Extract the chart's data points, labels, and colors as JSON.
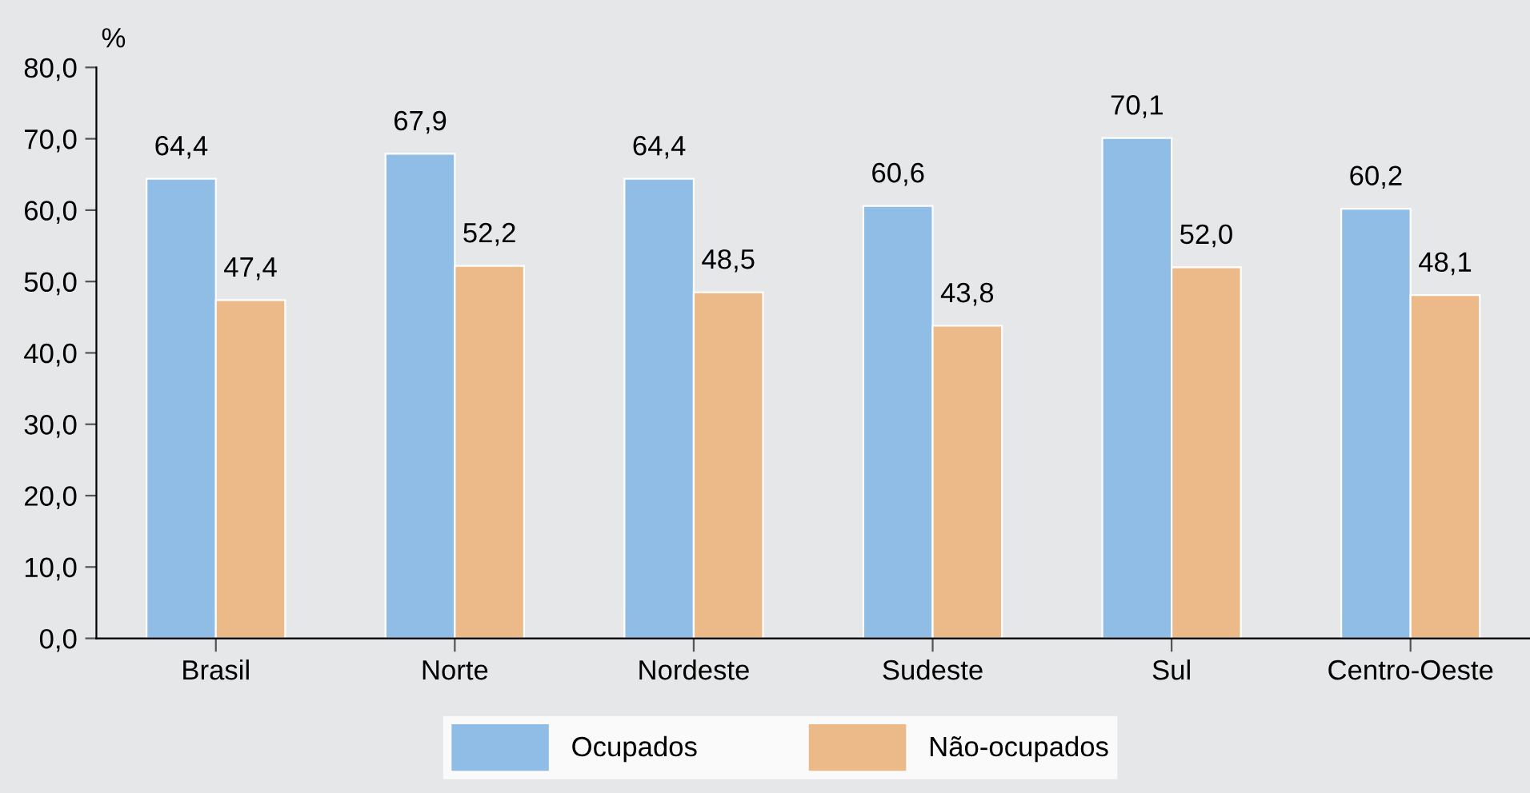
{
  "chart_data": {
    "type": "bar",
    "ylabel": "%",
    "categories": [
      "Brasil",
      "Norte",
      "Nordeste",
      "Sudeste",
      "Sul",
      "Centro-Oeste"
    ],
    "series": [
      {
        "name": "Ocupados",
        "color": "#8fbde6",
        "values": [
          64.4,
          67.9,
          64.4,
          60.6,
          70.1,
          60.2
        ],
        "value_labels": [
          "64,4",
          "67,9",
          "64,4",
          "60,6",
          "70,1",
          "60,2"
        ]
      },
      {
        "name": "Não-ocupados",
        "color": "#ecba88",
        "values": [
          47.4,
          52.2,
          48.5,
          43.8,
          52.0,
          48.1
        ],
        "value_labels": [
          "47,4",
          "52,2",
          "48,5",
          "43,8",
          "52,0",
          "48,1"
        ]
      }
    ],
    "ylim": [
      0,
      80
    ],
    "yticks": [
      {
        "value": 0,
        "label": "0,0"
      },
      {
        "value": 10,
        "label": "10,0"
      },
      {
        "value": 20,
        "label": "20,0"
      },
      {
        "value": 30,
        "label": "30,0"
      },
      {
        "value": 40,
        "label": "40,0"
      },
      {
        "value": 50,
        "label": "50,0"
      },
      {
        "value": 60,
        "label": "60,0"
      },
      {
        "value": 70,
        "label": "70,0"
      },
      {
        "value": 80,
        "label": "80,0"
      }
    ],
    "grid": false,
    "legend": "bottom"
  }
}
